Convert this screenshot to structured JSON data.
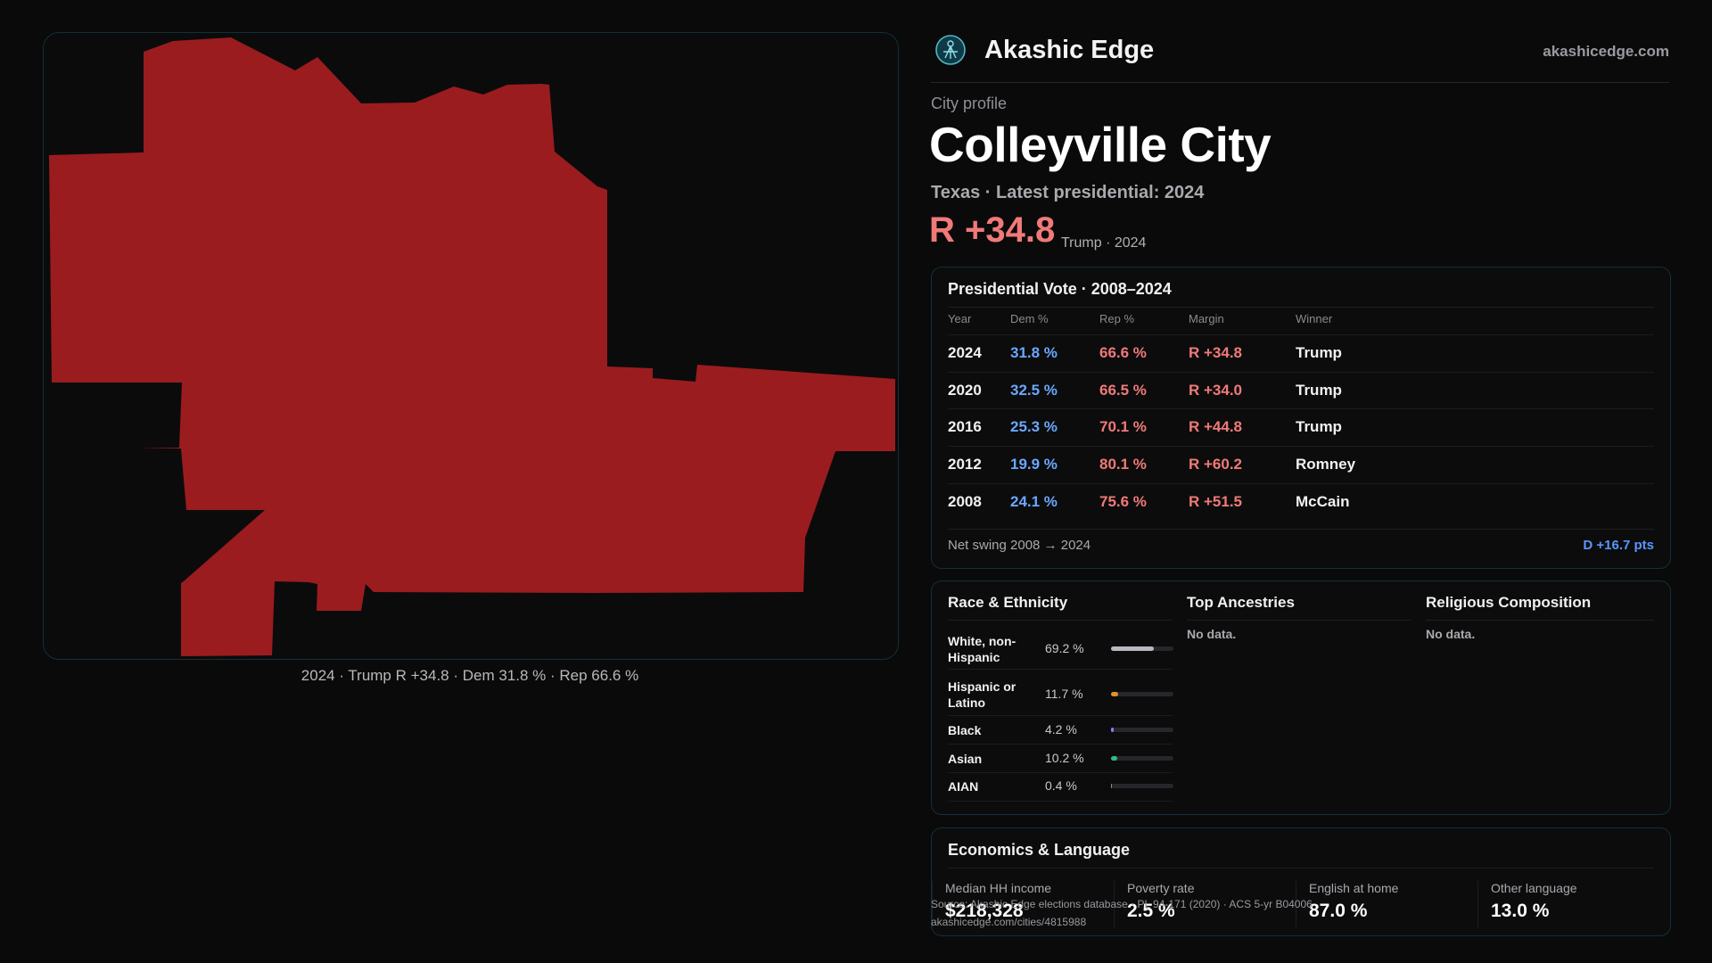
{
  "brand": {
    "name": "Akashic Edge",
    "site": "akashicedge.com"
  },
  "header": {
    "kicker": "City profile",
    "title": "Colleyville City",
    "subtitle": "Texas · Latest presidential: 2024",
    "margin": "R +34.8",
    "margin_note": "Trump · 2024"
  },
  "map": {
    "fill_color": "#9b1c1e",
    "caption": "2024 · Trump R +34.8 · Dem 31.8 % · Rep 66.6 %"
  },
  "vote": {
    "title": "Presidential Vote · 2008–2024",
    "headers": {
      "year": "Year",
      "dem": "Dem %",
      "rep": "Rep %",
      "margin": "Margin",
      "winner": "Winner"
    },
    "rows": [
      {
        "year": "2024",
        "dem": "31.8 %",
        "rep": "66.6 %",
        "margin": "R +34.8",
        "winner": "Trump"
      },
      {
        "year": "2020",
        "dem": "32.5 %",
        "rep": "66.5 %",
        "margin": "R +34.0",
        "winner": "Trump"
      },
      {
        "year": "2016",
        "dem": "25.3 %",
        "rep": "70.1 %",
        "margin": "R +44.8",
        "winner": "Trump"
      },
      {
        "year": "2012",
        "dem": "19.9 %",
        "rep": "80.1 %",
        "margin": "R +60.2",
        "winner": "Romney"
      },
      {
        "year": "2008",
        "dem": "24.1 %",
        "rep": "75.6 %",
        "margin": "R +51.5",
        "winner": "McCain"
      }
    ],
    "swing_label": "Net swing 2008 → 2024",
    "swing_value": "D +16.7 pts"
  },
  "demographics": {
    "race_title": "Race & Ethnicity",
    "race": [
      {
        "label": "White, non-Hispanic",
        "pct": "69.2 %",
        "fraction": 0.692,
        "color": "#b8b8c0"
      },
      {
        "label": "Hispanic or Latino",
        "pct": "11.7 %",
        "fraction": 0.117,
        "color": "#e0922a"
      },
      {
        "label": "Black",
        "pct": "4.2 %",
        "fraction": 0.042,
        "color": "#8f7cf0"
      },
      {
        "label": "Asian",
        "pct": "10.2 %",
        "fraction": 0.102,
        "color": "#2bbf7f"
      },
      {
        "label": "AIAN",
        "pct": "0.4 %",
        "fraction": 0.004,
        "color": "#8a8a90"
      }
    ],
    "ancestry_title": "Top Ancestries",
    "ancestry_nodata": "No data.",
    "religion_title": "Religious Composition",
    "religion_nodata": "No data."
  },
  "economics": {
    "title": "Economics & Language",
    "cells": [
      {
        "label": "Median HH income",
        "value": "$218,328"
      },
      {
        "label": "Poverty rate",
        "value": "2.5 %"
      },
      {
        "label": "English at home",
        "value": "87.0 %"
      },
      {
        "label": "Other language",
        "value": "13.0 %"
      }
    ]
  },
  "source": {
    "line1": "Source: Akashic Edge elections database · PL 94-171 (2020) · ACS 5-yr B04006",
    "line2": "akashicedge.com/cities/4815988"
  }
}
